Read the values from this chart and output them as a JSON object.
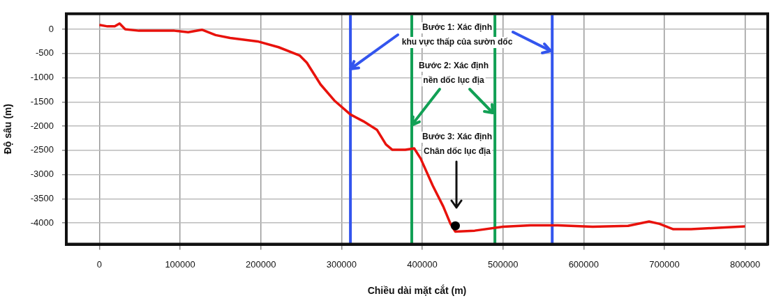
{
  "chart_data": {
    "type": "line",
    "xlabel": "Chiều dài mặt cắt (m)",
    "ylabel": "Độ sâu (m)",
    "xlim": [
      -41000,
      828000
    ],
    "xticks": [
      0,
      100000,
      200000,
      300000,
      400000,
      500000,
      600000,
      700000,
      800000
    ],
    "ylim": [
      -4440,
      320
    ],
    "yticks": [
      0,
      -500,
      -1000,
      -1500,
      -2000,
      -2500,
      -3000,
      -3500,
      -4000
    ],
    "grid": true,
    "legend": false,
    "marker": "none",
    "line_style": "solid",
    "series": [
      {
        "color": "#e8120c",
        "x": [
          0,
          10000,
          19000,
          25000,
          32000,
          49000,
          93000,
          110000,
          127000,
          144000,
          162000,
          196000,
          222000,
          248000,
          257000,
          274000,
          291000,
          311000,
          327000,
          344000,
          355000,
          363000,
          379000,
          390000,
          398000,
          413000,
          426000,
          435000,
          441000,
          465000,
          500000,
          534000,
          568000,
          611000,
          655000,
          681000,
          694000,
          711000,
          733000,
          767000,
          800000
        ],
        "values": [
          90,
          60,
          60,
          120,
          0,
          -30,
          -30,
          -60,
          -10,
          -120,
          -180,
          -250,
          -370,
          -540,
          -690,
          -1140,
          -1470,
          -1760,
          -1900,
          -2080,
          -2380,
          -2490,
          -2490,
          -2460,
          -2670,
          -3230,
          -3660,
          -4020,
          -4180,
          -4160,
          -4080,
          -4050,
          -4050,
          -4080,
          -4060,
          -3970,
          -4020,
          -4130,
          -4130,
          -4100,
          -4070
        ]
      },
      {
        "type": "scatter",
        "marker": "circle",
        "color": "#000000",
        "x": [
          441000
        ],
        "values": [
          -4060
        ]
      }
    ],
    "ref_lines": [
      {
        "axis": "x",
        "value": 311000,
        "color": "#3355ee"
      },
      {
        "axis": "x",
        "value": 561000,
        "color": "#3355ee"
      },
      {
        "axis": "x",
        "value": 387000,
        "color": "#12a055"
      },
      {
        "axis": "x",
        "value": 490000,
        "color": "#12a055"
      }
    ],
    "annotations": [
      {
        "text": "Bước 1: Xác định\nkhu vực thấp của sườn dốc",
        "x": 311000,
        "y": -820
      },
      {
        "text": "Bước 2: Xác định\nnền dốc lục địa",
        "x": 387000,
        "y": -1980
      },
      "Bước 3: Xác định\nChân dốc lục địa"
    ]
  }
}
